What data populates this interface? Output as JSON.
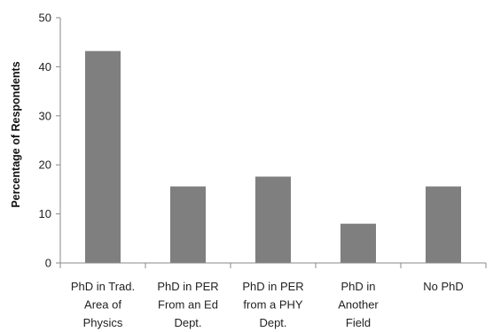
{
  "chart_data": {
    "type": "bar",
    "title": "",
    "xlabel": "",
    "ylabel": "Percentage of Respondents",
    "ylim": [
      0,
      50
    ],
    "yticks": [
      0,
      10,
      20,
      30,
      40,
      50
    ],
    "grid": false,
    "categories": [
      [
        "PhD in Trad.",
        "Area of",
        "Physics"
      ],
      [
        "PhD in PER",
        "From an Ed",
        "Dept."
      ],
      [
        "PhD in PER",
        "from a PHY",
        "Dept."
      ],
      [
        "PhD in",
        "Another",
        "Field"
      ],
      [
        "No PhD"
      ]
    ],
    "values": [
      43.2,
      15.6,
      17.6,
      8.0,
      15.6
    ],
    "bar_color": "#7f7f7f",
    "axis_color": "#888888"
  }
}
